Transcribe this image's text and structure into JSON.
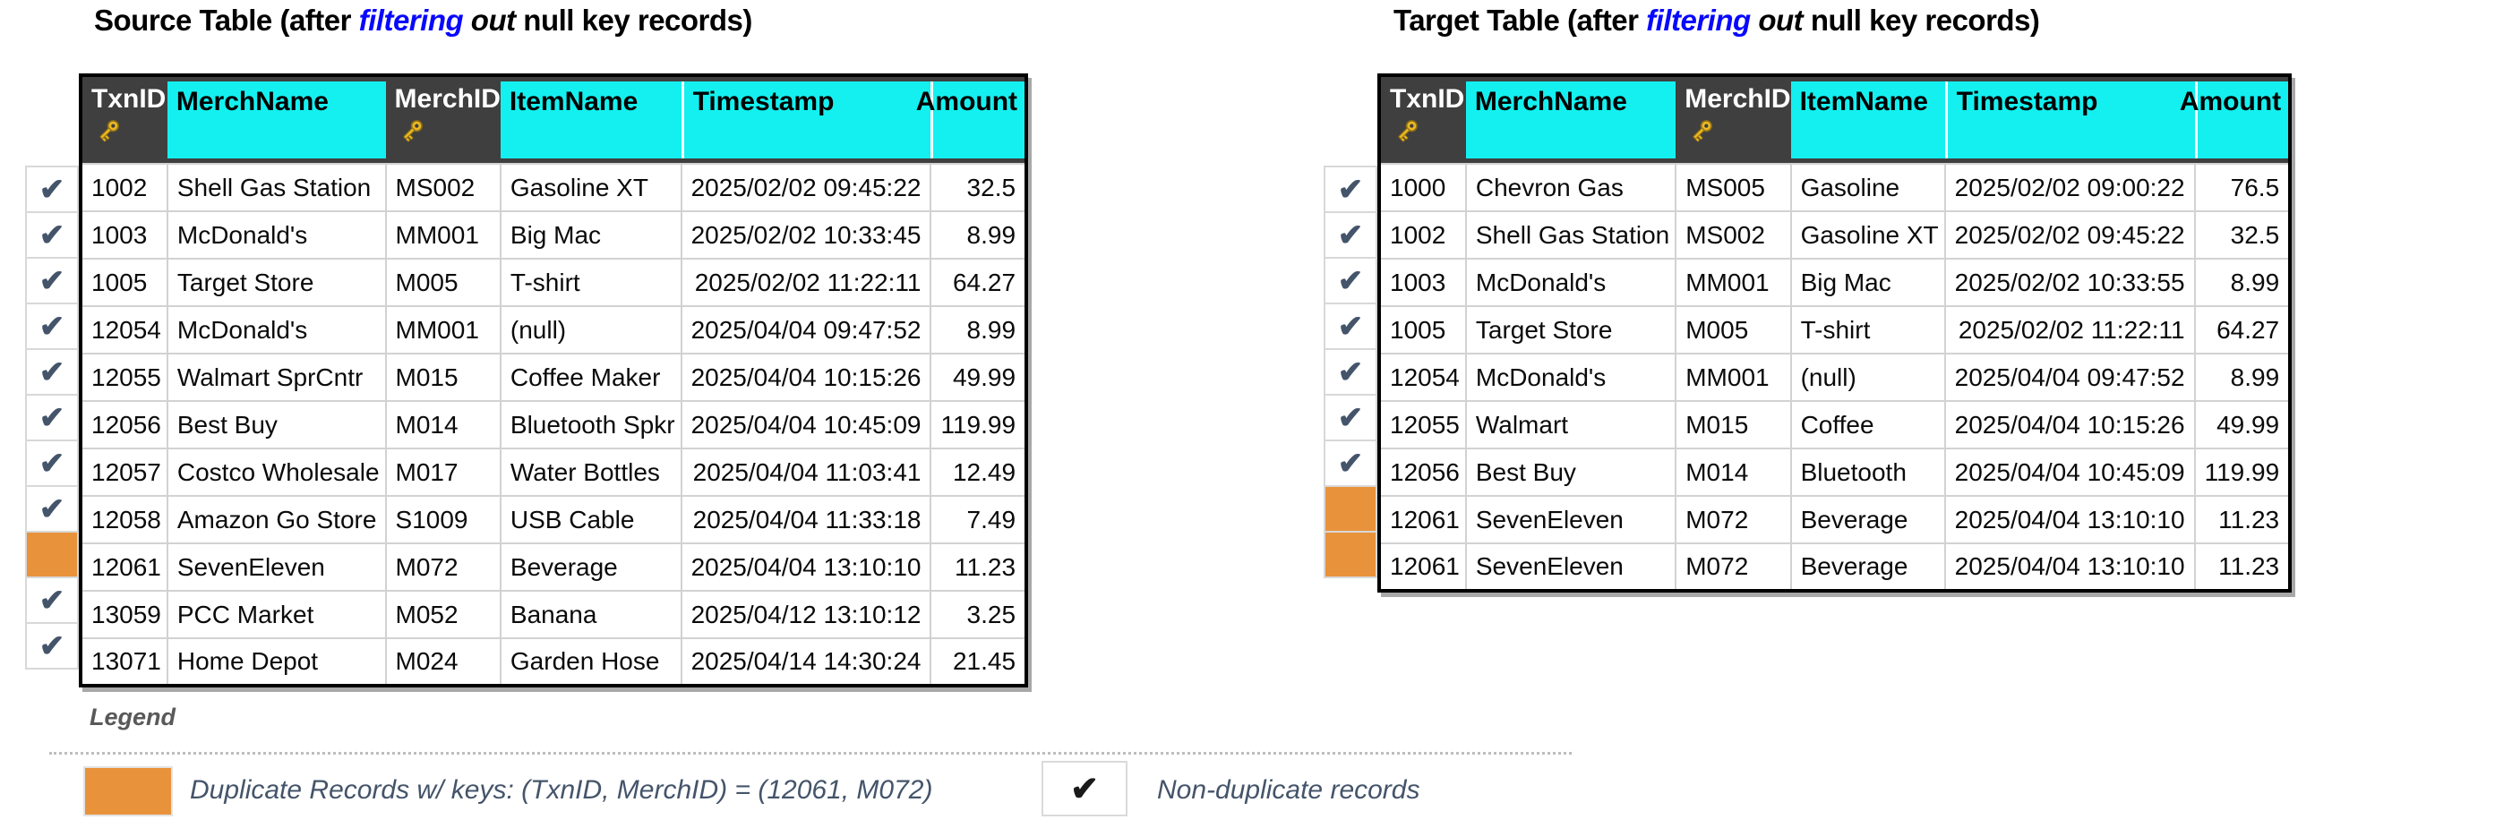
{
  "colors": {
    "header_cyan": "#14F0F0",
    "header_dark": "#3F3F3F",
    "dup_orange": "#E8923C",
    "check_color": "#44546A",
    "title_blue": "#0808FF",
    "legend_text": "#44546A"
  },
  "marks": {
    "check": "✔",
    "key_icon": "key-icon"
  },
  "columns": [
    {
      "id": "txn_id",
      "label": "TxnID",
      "style": "dark",
      "key": true
    },
    {
      "id": "merch_name",
      "label": "MerchName",
      "style": "cyan",
      "key": false
    },
    {
      "id": "merch_id",
      "label": "MerchID",
      "style": "dark",
      "key": true
    },
    {
      "id": "item_name",
      "label": "ItemName",
      "style": "cyan",
      "key": false
    },
    {
      "id": "timestamp",
      "label": "Timestamp",
      "style": "cyan",
      "key": false
    },
    {
      "id": "amount",
      "label": "Amount",
      "style": "cyan",
      "key": false,
      "align": "right"
    }
  ],
  "source_table": {
    "title": {
      "prefix": "Source Table (after ",
      "highlight": "filtering",
      "mid": " out ",
      "suffix": "null key records)"
    },
    "rows": [
      {
        "mark": "check",
        "txn_id": "1002",
        "merch_name": "Shell Gas Station",
        "merch_id": "MS002",
        "item_name": "Gasoline XT",
        "timestamp": "2025/02/02 09:45:22",
        "amount": "32.5"
      },
      {
        "mark": "check",
        "txn_id": "1003",
        "merch_name": "McDonald's",
        "merch_id": "MM001",
        "item_name": "Big Mac",
        "timestamp": "2025/02/02 10:33:45",
        "amount": "8.99"
      },
      {
        "mark": "check",
        "txn_id": "1005",
        "merch_name": "Target Store",
        "merch_id": "M005",
        "item_name": "T-shirt",
        "timestamp": "2025/02/02 11:22:11",
        "amount": "64.27"
      },
      {
        "mark": "check",
        "txn_id": "12054",
        "merch_name": "McDonald's",
        "merch_id": "MM001",
        "item_name": "(null)",
        "timestamp": "2025/04/04 09:47:52",
        "amount": "8.99"
      },
      {
        "mark": "check",
        "txn_id": "12055",
        "merch_name": "Walmart SprCntr",
        "merch_id": "M015",
        "item_name": "Coffee Maker",
        "timestamp": "2025/04/04 10:15:26",
        "amount": "49.99"
      },
      {
        "mark": "check",
        "txn_id": "12056",
        "merch_name": "Best Buy",
        "merch_id": "M014",
        "item_name": "Bluetooth Spkr",
        "timestamp": "2025/04/04 10:45:09",
        "amount": "119.99"
      },
      {
        "mark": "check",
        "txn_id": "12057",
        "merch_name": "Costco Wholesale",
        "merch_id": "M017",
        "item_name": "Water Bottles",
        "timestamp": "2025/04/04 11:03:41",
        "amount": "12.49"
      },
      {
        "mark": "check",
        "txn_id": "12058",
        "merch_name": "Amazon Go Store",
        "merch_id": "S1009",
        "item_name": "USB Cable",
        "timestamp": "2025/04/04 11:33:18",
        "amount": "7.49"
      },
      {
        "mark": "dup",
        "txn_id": "12061",
        "merch_name": "SevenEleven",
        "merch_id": "M072",
        "item_name": "Beverage",
        "timestamp": "2025/04/04 13:10:10",
        "amount": "11.23"
      },
      {
        "mark": "check",
        "txn_id": "13059",
        "merch_name": "PCC Market",
        "merch_id": "M052",
        "item_name": "Banana",
        "timestamp": "2025/04/12 13:10:12",
        "amount": "3.25"
      },
      {
        "mark": "check",
        "txn_id": "13071",
        "merch_name": "Home Depot",
        "merch_id": "M024",
        "item_name": "Garden Hose",
        "timestamp": "2025/04/14 14:30:24",
        "amount": "21.45"
      }
    ]
  },
  "target_table": {
    "title": {
      "prefix": "Target Table (after ",
      "highlight": "filtering",
      "mid": " out ",
      "suffix": "null key records)"
    },
    "rows": [
      {
        "mark": "check",
        "txn_id": "1000",
        "merch_name": "Chevron Gas",
        "merch_id": "MS005",
        "item_name": "Gasoline",
        "timestamp": "2025/02/02 09:00:22",
        "amount": "76.5"
      },
      {
        "mark": "check",
        "txn_id": "1002",
        "merch_name": "Shell Gas Station",
        "merch_id": "MS002",
        "item_name": "Gasoline XT",
        "timestamp": "2025/02/02 09:45:22",
        "amount": "32.5"
      },
      {
        "mark": "check",
        "txn_id": "1003",
        "merch_name": "McDonald's",
        "merch_id": "MM001",
        "item_name": "Big Mac",
        "timestamp": "2025/02/02 10:33:55",
        "amount": "8.99"
      },
      {
        "mark": "check",
        "txn_id": "1005",
        "merch_name": "Target Store",
        "merch_id": "M005",
        "item_name": "T-shirt",
        "timestamp": "2025/02/02 11:22:11",
        "amount": "64.27"
      },
      {
        "mark": "check",
        "txn_id": "12054",
        "merch_name": "McDonald's",
        "merch_id": "MM001",
        "item_name": "(null)",
        "timestamp": "2025/04/04 09:47:52",
        "amount": "8.99"
      },
      {
        "mark": "check",
        "txn_id": "12055",
        "merch_name": "Walmart",
        "merch_id": "M015",
        "item_name": "Coffee",
        "timestamp": "2025/04/04 10:15:26",
        "amount": "49.99"
      },
      {
        "mark": "check",
        "txn_id": "12056",
        "merch_name": "Best Buy",
        "merch_id": "M014",
        "item_name": "Bluetooth",
        "timestamp": "2025/04/04 10:45:09",
        "amount": "119.99"
      },
      {
        "mark": "dup",
        "txn_id": "12061",
        "merch_name": "SevenEleven",
        "merch_id": "M072",
        "item_name": "Beverage",
        "timestamp": "2025/04/04 13:10:10",
        "amount": "11.23"
      },
      {
        "mark": "dup",
        "txn_id": "12061",
        "merch_name": "SevenEleven",
        "merch_id": "M072",
        "item_name": "Beverage",
        "timestamp": "2025/04/04 13:10:10",
        "amount": "11.23"
      }
    ]
  },
  "legend": {
    "title": "Legend",
    "duplicate_text": "Duplicate Records w/ keys: (TxnID, MerchID) = (12061, M072)",
    "check_text": "Non-duplicate records"
  }
}
